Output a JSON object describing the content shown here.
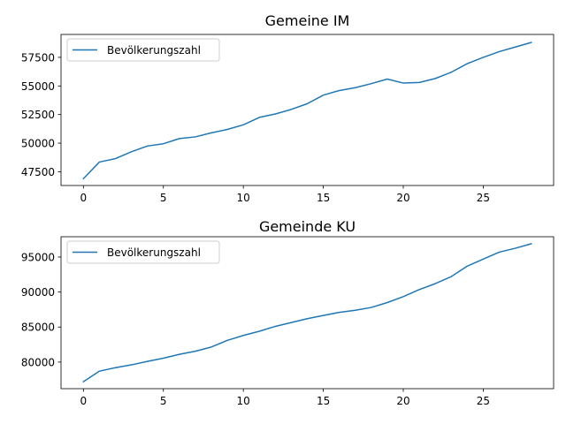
{
  "chart_data": [
    {
      "type": "line",
      "title": "Gemeine IM",
      "xlabel": "",
      "ylabel": "",
      "xlim": [
        -1.4,
        29.4
      ],
      "ylim": [
        46300,
        59500
      ],
      "xticks": [
        0,
        5,
        10,
        15,
        20,
        25
      ],
      "yticks": [
        47500,
        50000,
        52500,
        55000,
        57500
      ],
      "legend": "top-left",
      "grid": false,
      "series": [
        {
          "name": "Bevölkerungszahl",
          "color": "#1f77b4",
          "x": [
            0,
            1,
            2,
            3,
            4,
            5,
            6,
            7,
            8,
            9,
            10,
            11,
            12,
            13,
            14,
            15,
            16,
            17,
            18,
            19,
            20,
            21,
            22,
            23,
            24,
            25,
            26,
            27,
            28
          ],
          "y": [
            46900,
            48350,
            48650,
            49250,
            49750,
            49950,
            50400,
            50550,
            50900,
            51200,
            51600,
            52250,
            52550,
            52950,
            53450,
            54200,
            54600,
            54850,
            55200,
            55600,
            55250,
            55300,
            55650,
            56200,
            56950,
            57500,
            58000,
            58400,
            58800
          ]
        }
      ]
    },
    {
      "type": "line",
      "title": "Gemeinde KU",
      "xlabel": "",
      "ylabel": "",
      "xlim": [
        -1.4,
        29.4
      ],
      "ylim": [
        76200,
        97900
      ],
      "xticks": [
        0,
        5,
        10,
        15,
        20,
        25
      ],
      "yticks": [
        80000,
        85000,
        90000,
        95000
      ],
      "legend": "top-left",
      "grid": false,
      "series": [
        {
          "name": "Bevölkerungszahl",
          "color": "#1f77b4",
          "x": [
            0,
            1,
            2,
            3,
            4,
            5,
            6,
            7,
            8,
            9,
            10,
            11,
            12,
            13,
            14,
            15,
            16,
            17,
            18,
            19,
            20,
            21,
            22,
            23,
            24,
            25,
            26,
            27,
            28
          ],
          "y": [
            77200,
            78700,
            79200,
            79600,
            80100,
            80550,
            81100,
            81550,
            82150,
            83100,
            83800,
            84400,
            85100,
            85650,
            86200,
            86650,
            87100,
            87400,
            87800,
            88500,
            89350,
            90350,
            91200,
            92200,
            93700,
            94700,
            95700,
            96250,
            96900
          ]
        }
      ]
    }
  ]
}
